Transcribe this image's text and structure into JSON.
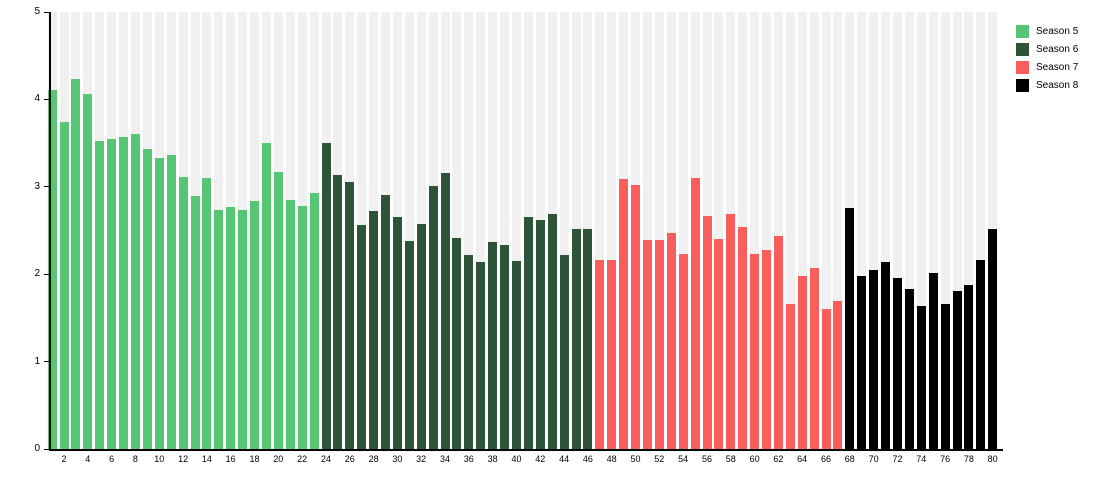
{
  "chart_data": {
    "type": "bar",
    "title": "",
    "xlabel": "",
    "ylabel": "",
    "ylim": [
      0,
      5
    ],
    "y_ticks": [
      "0",
      "1",
      "2",
      "3",
      "4",
      "5"
    ],
    "x_tick_labels": [
      "2",
      "4",
      "6",
      "8",
      "10",
      "12",
      "14",
      "16",
      "18",
      "20",
      "22",
      "24",
      "26",
      "28",
      "30",
      "32",
      "34",
      "36",
      "38",
      "40",
      "42",
      "44",
      "46",
      "48",
      "50",
      "52",
      "54",
      "56",
      "58",
      "60",
      "62",
      "64",
      "66",
      "68",
      "70",
      "72",
      "74",
      "76",
      "78",
      "80"
    ],
    "x_tick_step": 2,
    "x_range": [
      1,
      80
    ],
    "grid": false,
    "background_stripes": true,
    "legend_position": "top-right",
    "series": [
      {
        "name": "Season 5",
        "color": "#56c574",
        "start_episode": 1,
        "values": [
          4.11,
          3.74,
          4.23,
          4.06,
          3.52,
          3.55,
          3.57,
          3.61,
          3.43,
          3.33,
          3.37,
          3.11,
          2.89,
          3.1,
          2.73,
          2.77,
          2.73,
          2.84,
          3.5,
          3.17,
          2.85,
          2.78,
          2.93
        ]
      },
      {
        "name": "Season 6",
        "color": "#2d5436",
        "start_episode": 24,
        "values": [
          3.5,
          3.14,
          3.06,
          2.56,
          2.72,
          2.91,
          2.65,
          2.38,
          2.57,
          3.01,
          3.16,
          2.42,
          2.22,
          2.14,
          2.37,
          2.33,
          2.15,
          2.66,
          2.62,
          2.69,
          2.22,
          2.52,
          2.52
        ]
      },
      {
        "name": "Season 7",
        "color": "#fa5e5c",
        "start_episode": 47,
        "values": [
          2.16,
          2.16,
          3.09,
          3.02,
          2.39,
          2.39,
          2.47,
          2.23,
          3.1,
          2.67,
          2.4,
          2.69,
          2.54,
          2.23,
          2.28,
          2.44,
          1.66,
          1.98,
          2.07,
          1.6,
          1.69
        ]
      },
      {
        "name": "Season 8",
        "color": "#000000",
        "start_episode": 68,
        "values": [
          2.76,
          1.98,
          2.05,
          2.14,
          1.96,
          1.83,
          1.64,
          2.02,
          1.66,
          1.81,
          1.88,
          2.16,
          2.52
        ]
      }
    ],
    "colors": {
      "stripe_background": "#f0f0f0",
      "axis": "#000000",
      "page_background": "#ffffff"
    }
  }
}
